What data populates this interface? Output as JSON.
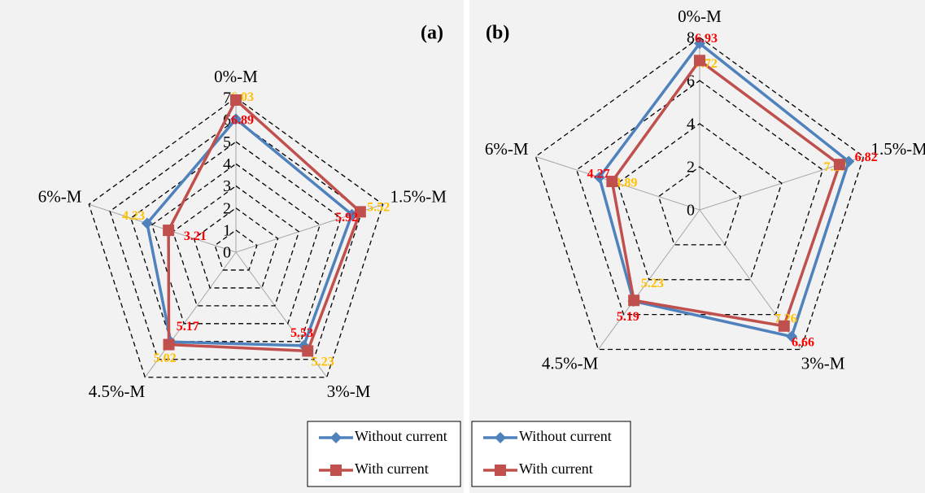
{
  "chart_data": [
    {
      "type": "radar",
      "title": "(a)",
      "categories": [
        "0%-M",
        "1.5%-M",
        "3%-M",
        "4.5%-M",
        "6%-M"
      ],
      "rlim": [
        0,
        7
      ],
      "rticks": [
        0,
        1,
        2,
        3,
        4,
        5,
        6,
        7
      ],
      "series": [
        {
          "name": "Without current",
          "color": "#4f81bd",
          "marker": "diamond",
          "label_color": "#ffc000",
          "values": [
            6.03,
            5.52,
            5.23,
            5.02,
            4.23
          ]
        },
        {
          "name": "With current",
          "color": "#c0504d",
          "marker": "square",
          "label_color": "#ff0000",
          "values": [
            6.89,
            5.92,
            5.53,
            5.17,
            3.21
          ]
        }
      ]
    },
    {
      "type": "radar",
      "title": "(b)",
      "categories": [
        "0%-M",
        "1.5%-M",
        "3%-M",
        "4.5%-M",
        "6%-M"
      ],
      "rlim": [
        0,
        8
      ],
      "rticks": [
        0,
        2,
        4,
        6,
        8
      ],
      "series": [
        {
          "name": "Without current",
          "color": "#4f81bd",
          "marker": "diamond",
          "label_color": "#ffc000",
          "values": [
            7.72,
            7.27,
            7.26,
            5.23,
            4.89
          ]
        },
        {
          "name": "With current",
          "color": "#c0504d",
          "marker": "square",
          "label_color": "#ff0000",
          "values": [
            6.93,
            6.82,
            6.66,
            5.19,
            4.27
          ]
        }
      ]
    }
  ]
}
